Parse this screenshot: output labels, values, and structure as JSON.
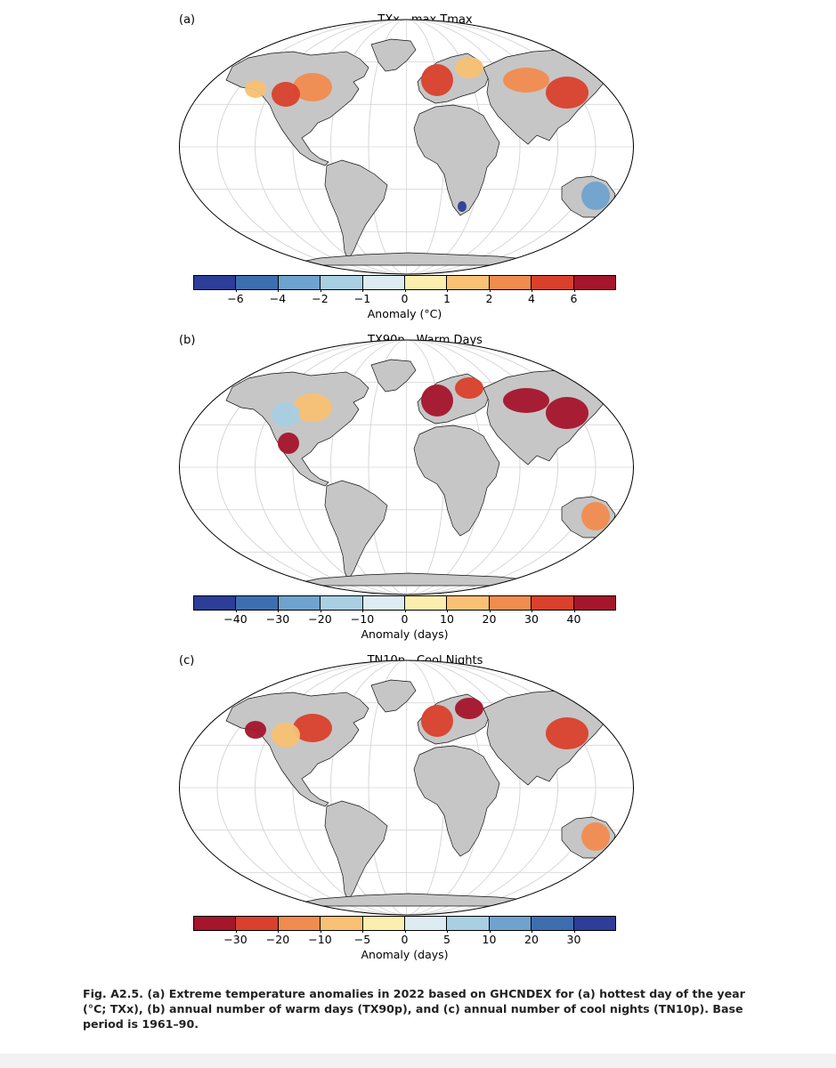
{
  "colors": {
    "land": "#c6c6c6",
    "ocean": "#ffffff",
    "graticule": "#d6d6d6",
    "coast": "#111111",
    "scale_warm": [
      "#2c3e97",
      "#3d6fb0",
      "#6fa3cf",
      "#a9cfe3",
      "#dcecf2",
      "#fbeeae",
      "#f8c173",
      "#f18c4f",
      "#d9412c",
      "#a5152c"
    ],
    "scale_cool": [
      "#a5152c",
      "#d9412c",
      "#f18c4f",
      "#f8c173",
      "#fbeeae",
      "#dcecf2",
      "#a9cfe3",
      "#6fa3cf",
      "#3d6fb0",
      "#2c3e97"
    ]
  },
  "panels": [
    {
      "letter": "(a)",
      "title": "TXx - max Tmax",
      "colorbar_label": "Anomaly (°C)",
      "ticks": [
        "−6",
        "−4",
        "−2",
        "−1",
        "0",
        "1",
        "2",
        "4",
        "6"
      ],
      "scale": "warm",
      "anomalies": [
        {
          "region": "north-america-east",
          "level": 7
        },
        {
          "region": "north-america-central",
          "level": 8
        },
        {
          "region": "north-america-west",
          "level": 6
        },
        {
          "region": "western-europe",
          "level": 8
        },
        {
          "region": "eastern-europe",
          "level": 6
        },
        {
          "region": "central-asia",
          "level": 7
        },
        {
          "region": "east-asia",
          "level": 8
        },
        {
          "region": "australia-east",
          "level": 2
        },
        {
          "region": "southern-africa",
          "level": 0
        }
      ]
    },
    {
      "letter": "(b)",
      "title": "TX90p - Warm Days",
      "colorbar_label": "Anomaly (days)",
      "ticks": [
        "−40",
        "−30",
        "−20",
        "−10",
        "0",
        "10",
        "20",
        "30",
        "40"
      ],
      "scale": "warm",
      "anomalies": [
        {
          "region": "north-america-east",
          "level": 6
        },
        {
          "region": "north-america-central",
          "level": 3
        },
        {
          "region": "north-america-south",
          "level": 9
        },
        {
          "region": "western-europe",
          "level": 9
        },
        {
          "region": "eastern-europe",
          "level": 8
        },
        {
          "region": "central-asia",
          "level": 9
        },
        {
          "region": "east-asia",
          "level": 9
        },
        {
          "region": "australia-east",
          "level": 7
        }
      ]
    },
    {
      "letter": "(c)",
      "title": "TN10p - Cool Nights",
      "colorbar_label": "Anomaly (days)",
      "ticks": [
        "−30",
        "−20",
        "−10",
        "−5",
        "0",
        "5",
        "10",
        "20",
        "30"
      ],
      "scale": "cool",
      "anomalies": [
        {
          "region": "north-america-east",
          "level": 1
        },
        {
          "region": "north-america-central",
          "level": 3
        },
        {
          "region": "north-america-west",
          "level": 0
        },
        {
          "region": "western-europe",
          "level": 1
        },
        {
          "region": "eastern-europe",
          "level": 0
        },
        {
          "region": "east-asia",
          "level": 1
        },
        {
          "region": "australia-east",
          "level": 2
        }
      ]
    }
  ],
  "caption": "Fig. A2.5. (a) Extreme temperature anomalies in 2022 based on GHCNDEX for (a) hottest day of the year (°C; TXx), (b) annual number of warm days (TX90p), and (c) annual number of cool nights (TN10p). Base period is 1961–90."
}
